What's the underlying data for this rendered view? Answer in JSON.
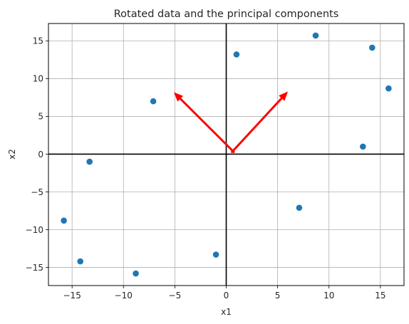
{
  "chart_data": {
    "type": "scatter",
    "title": "Rotated data and the principal components",
    "xlabel": "x1",
    "ylabel": "x2",
    "xlim": [
      -17.3,
      17.3
    ],
    "ylim": [
      -17.4,
      17.3
    ],
    "xticks": [
      -15,
      -10,
      -5,
      0,
      5,
      10,
      15
    ],
    "yticks": [
      -15,
      -10,
      -5,
      0,
      5,
      10,
      15
    ],
    "xtick_labels": [
      "−15",
      "−10",
      "−5",
      "0",
      "5",
      "10",
      "15"
    ],
    "ytick_labels": [
      "−15",
      "−10",
      "−5",
      "0",
      "5",
      "10",
      "15"
    ],
    "grid": true,
    "point_color": "#1f77b4",
    "arrow_color": "#ff0000",
    "points": [
      {
        "x": -15.8,
        "y": -8.8
      },
      {
        "x": -14.2,
        "y": -14.2
      },
      {
        "x": -13.3,
        "y": -1.0
      },
      {
        "x": -8.8,
        "y": -15.8
      },
      {
        "x": -7.1,
        "y": 7.0
      },
      {
        "x": -1.0,
        "y": -13.3
      },
      {
        "x": 1.0,
        "y": 13.2
      },
      {
        "x": 7.1,
        "y": -7.1
      },
      {
        "x": 8.7,
        "y": 15.7
      },
      {
        "x": 13.3,
        "y": 1.0
      },
      {
        "x": 14.2,
        "y": 14.1
      },
      {
        "x": 15.8,
        "y": 8.7
      }
    ],
    "arrows": [
      {
        "x0": 0.5,
        "y0": 0.2,
        "x1": 6.0,
        "y1": 8.3
      },
      {
        "x0": 0.8,
        "y0": 0.2,
        "x1": -5.1,
        "y1": 8.2
      }
    ],
    "reference_lines": {
      "x": 0,
      "y": 0
    }
  }
}
